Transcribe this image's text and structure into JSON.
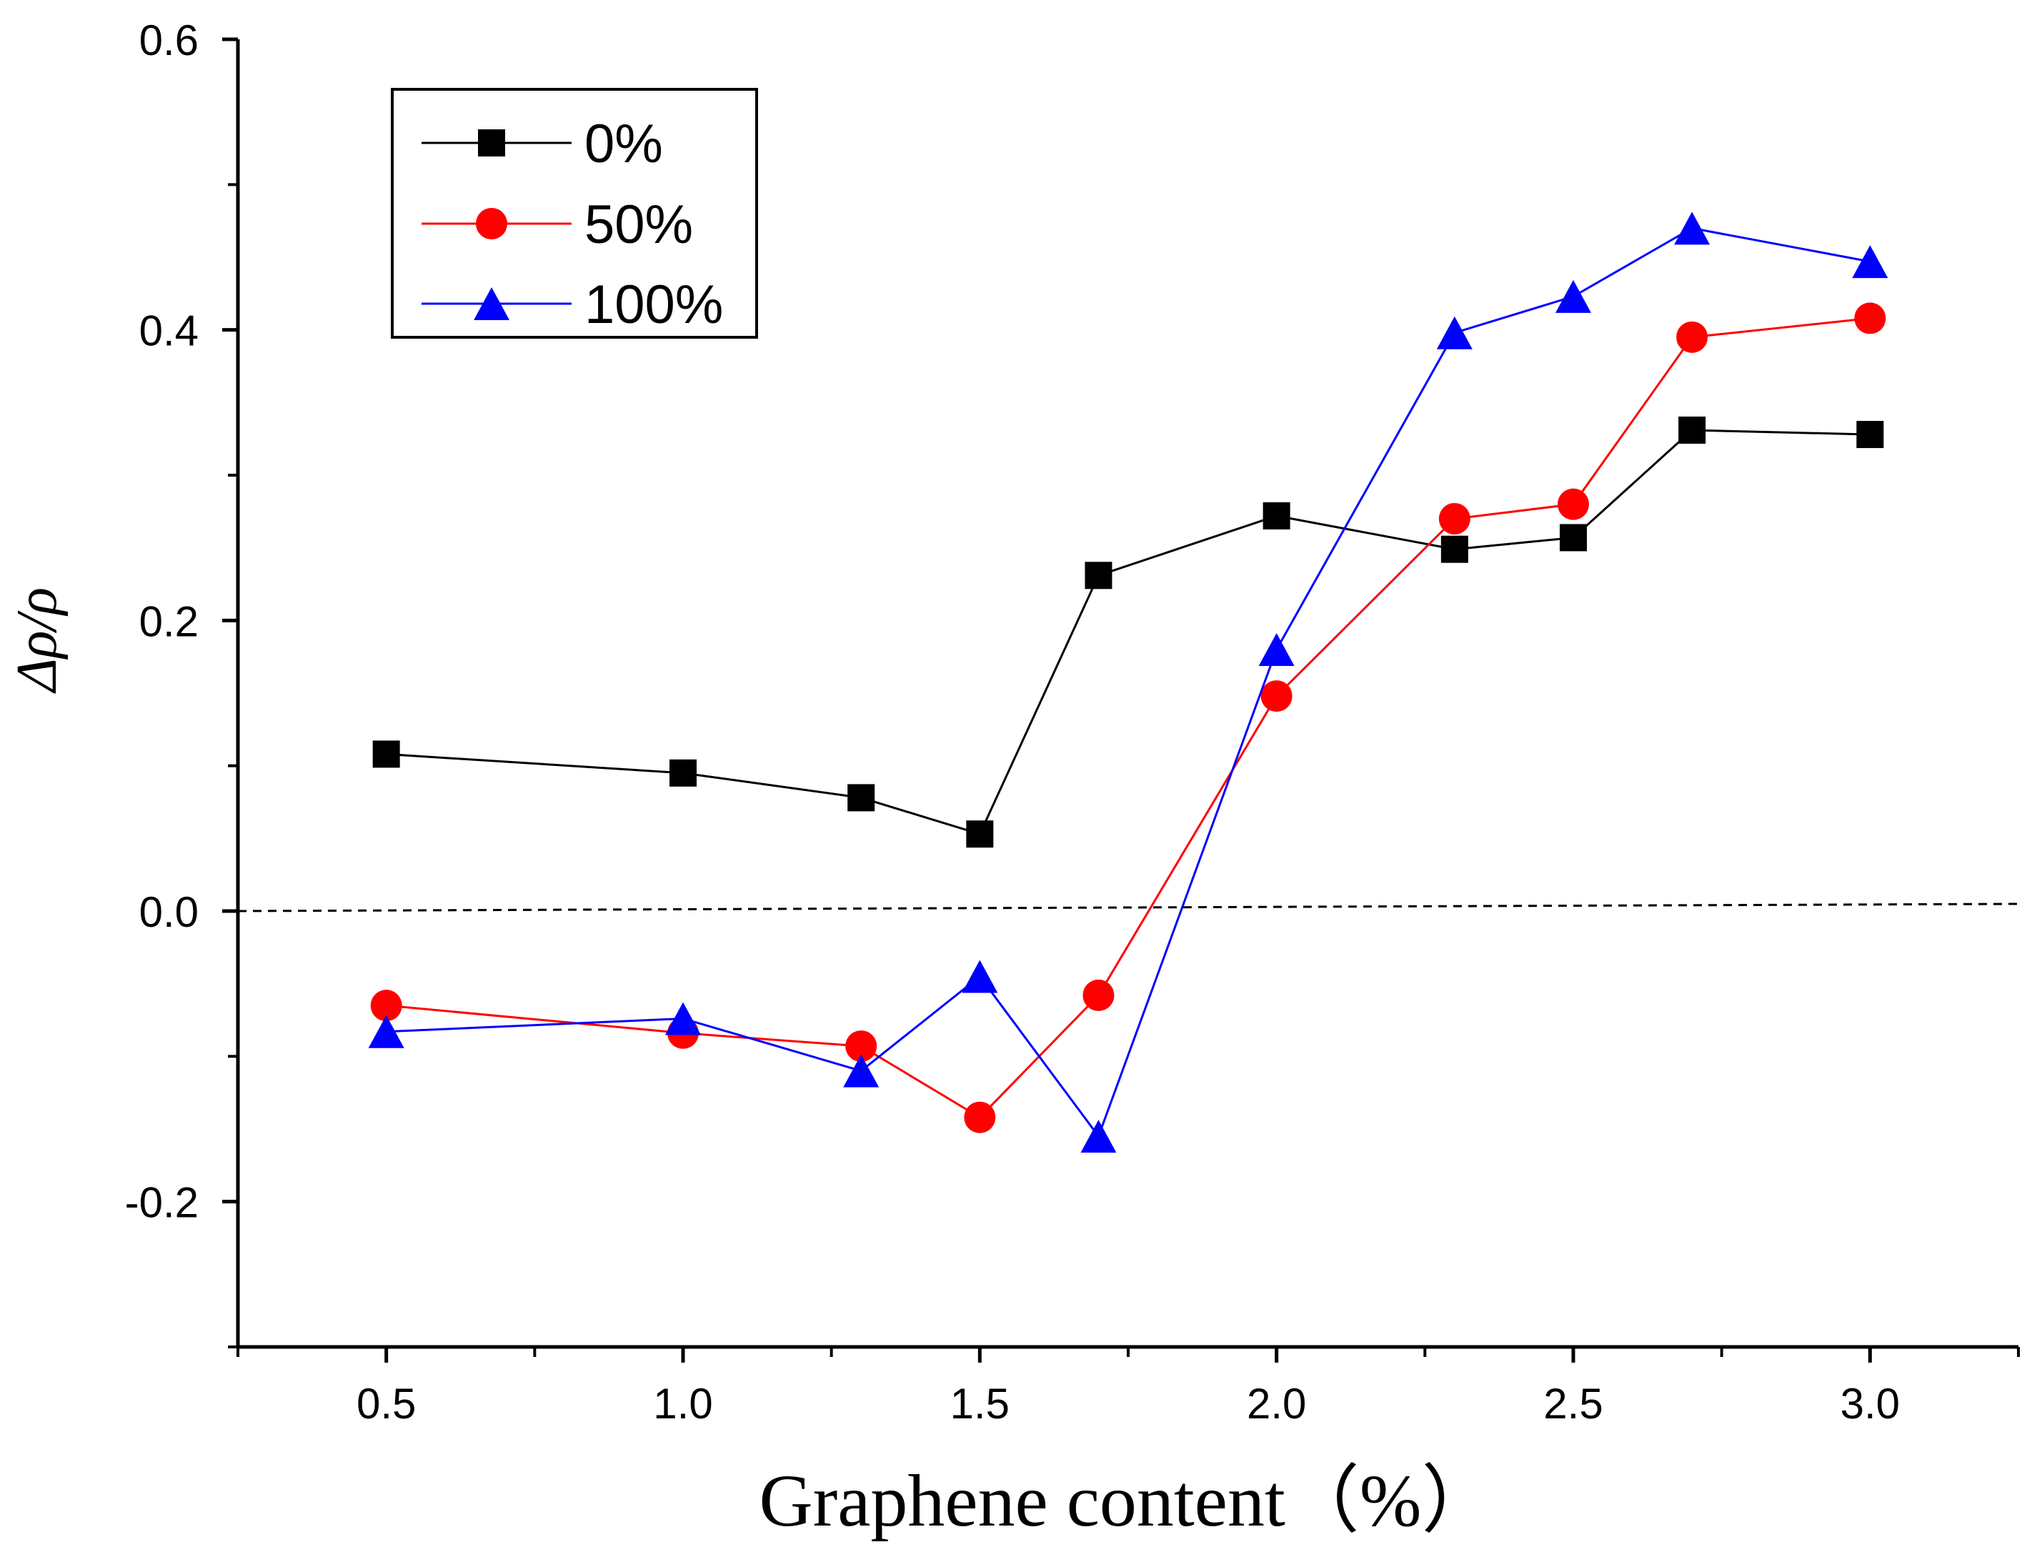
{
  "chart_data": {
    "type": "line",
    "title": "",
    "xlabel": "Graphene content（%）",
    "ylabel": "Δρ/ρ",
    "xlim": [
      0.25,
      3.25
    ],
    "ylim": [
      -0.3,
      0.6
    ],
    "x_ticks": [
      "0.5",
      "1.0",
      "1.5",
      "2.0",
      "2.5",
      "3.0"
    ],
    "y_ticks": [
      "-0.2",
      "0.0",
      "0.2",
      "0.4",
      "0.6"
    ],
    "x": [
      0.5,
      1.0,
      1.3,
      1.5,
      1.7,
      2.0,
      2.3,
      2.5,
      2.7,
      3.0
    ],
    "reference_line": {
      "y": 0.0,
      "style": "dashed"
    },
    "legend_position": "top-left",
    "series": [
      {
        "name": "0%",
        "color": "#000000",
        "marker": "square",
        "values": [
          0.108,
          0.095,
          0.078,
          0.053,
          0.231,
          0.272,
          0.249,
          0.257,
          0.331,
          0.328
        ]
      },
      {
        "name": "50%",
        "color": "#ff0000",
        "marker": "circle",
        "values": [
          -0.065,
          -0.084,
          -0.093,
          -0.142,
          -0.058,
          0.148,
          0.27,
          0.28,
          0.395,
          0.408
        ]
      },
      {
        "name": "100%",
        "color": "#0000ff",
        "marker": "triangle",
        "values": [
          -0.083,
          -0.074,
          -0.11,
          -0.045,
          -0.155,
          0.18,
          0.398,
          0.423,
          0.47,
          0.447
        ]
      }
    ]
  }
}
